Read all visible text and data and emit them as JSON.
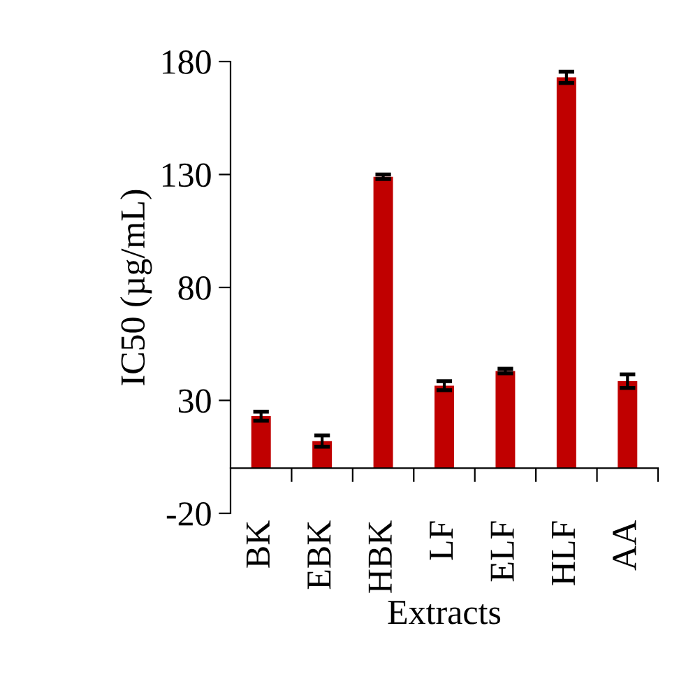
{
  "chart_data": {
    "type": "bar",
    "xlabel": "Extracts",
    "ylabel": "IC50 (µg/mL)",
    "categories": [
      "BK",
      "EBK",
      "HBK",
      "LF",
      "ELF",
      "HLF",
      "AA"
    ],
    "values": [
      23,
      12,
      129,
      36.5,
      43,
      173,
      38.5
    ],
    "errors": [
      2,
      2.5,
      1,
      2,
      1,
      2.5,
      3
    ],
    "color": "#c00000",
    "ylim": [
      -20,
      180
    ],
    "yticks": [
      -20,
      30,
      80,
      130,
      180
    ],
    "grid": false,
    "legend": false
  }
}
